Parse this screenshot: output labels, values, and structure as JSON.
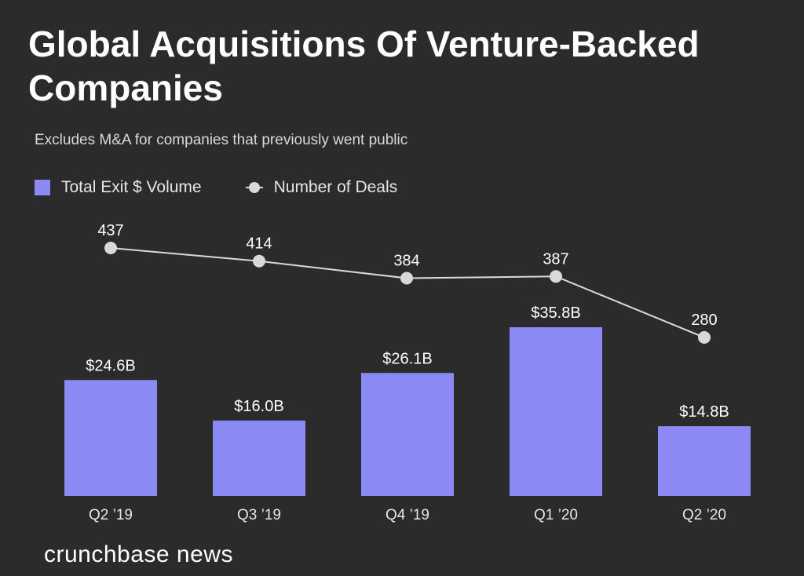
{
  "colors": {
    "background": "#2b2b2b",
    "bar": "#8b8af5",
    "line": "#d9d9d9",
    "text": "#ffffff"
  },
  "brand": "crunchbase news",
  "chart_data": {
    "type": "bar",
    "title": "Global Acquisitions Of Venture-Backed Companies",
    "subtitle": "Excludes M&A for companies that previously went public",
    "legend": {
      "bars": "Total Exit $ Volume",
      "line": "Number of Deals"
    },
    "categories": [
      "Q2 ’19",
      "Q3 ’19",
      "Q4 ’19",
      "Q1 ’20",
      "Q2 ’20"
    ],
    "series": [
      {
        "name": "Total Exit $ Volume",
        "type": "bar",
        "values": [
          24.6,
          16.0,
          26.1,
          35.8,
          14.8
        ],
        "labels": [
          "$24.6B",
          "$16.0B",
          "$26.1B",
          "$35.8B",
          "$14.8B"
        ]
      },
      {
        "name": "Number of Deals",
        "type": "line",
        "values": [
          437,
          414,
          384,
          387,
          280
        ],
        "labels": [
          "437",
          "414",
          "384",
          "387",
          "280"
        ]
      }
    ]
  }
}
